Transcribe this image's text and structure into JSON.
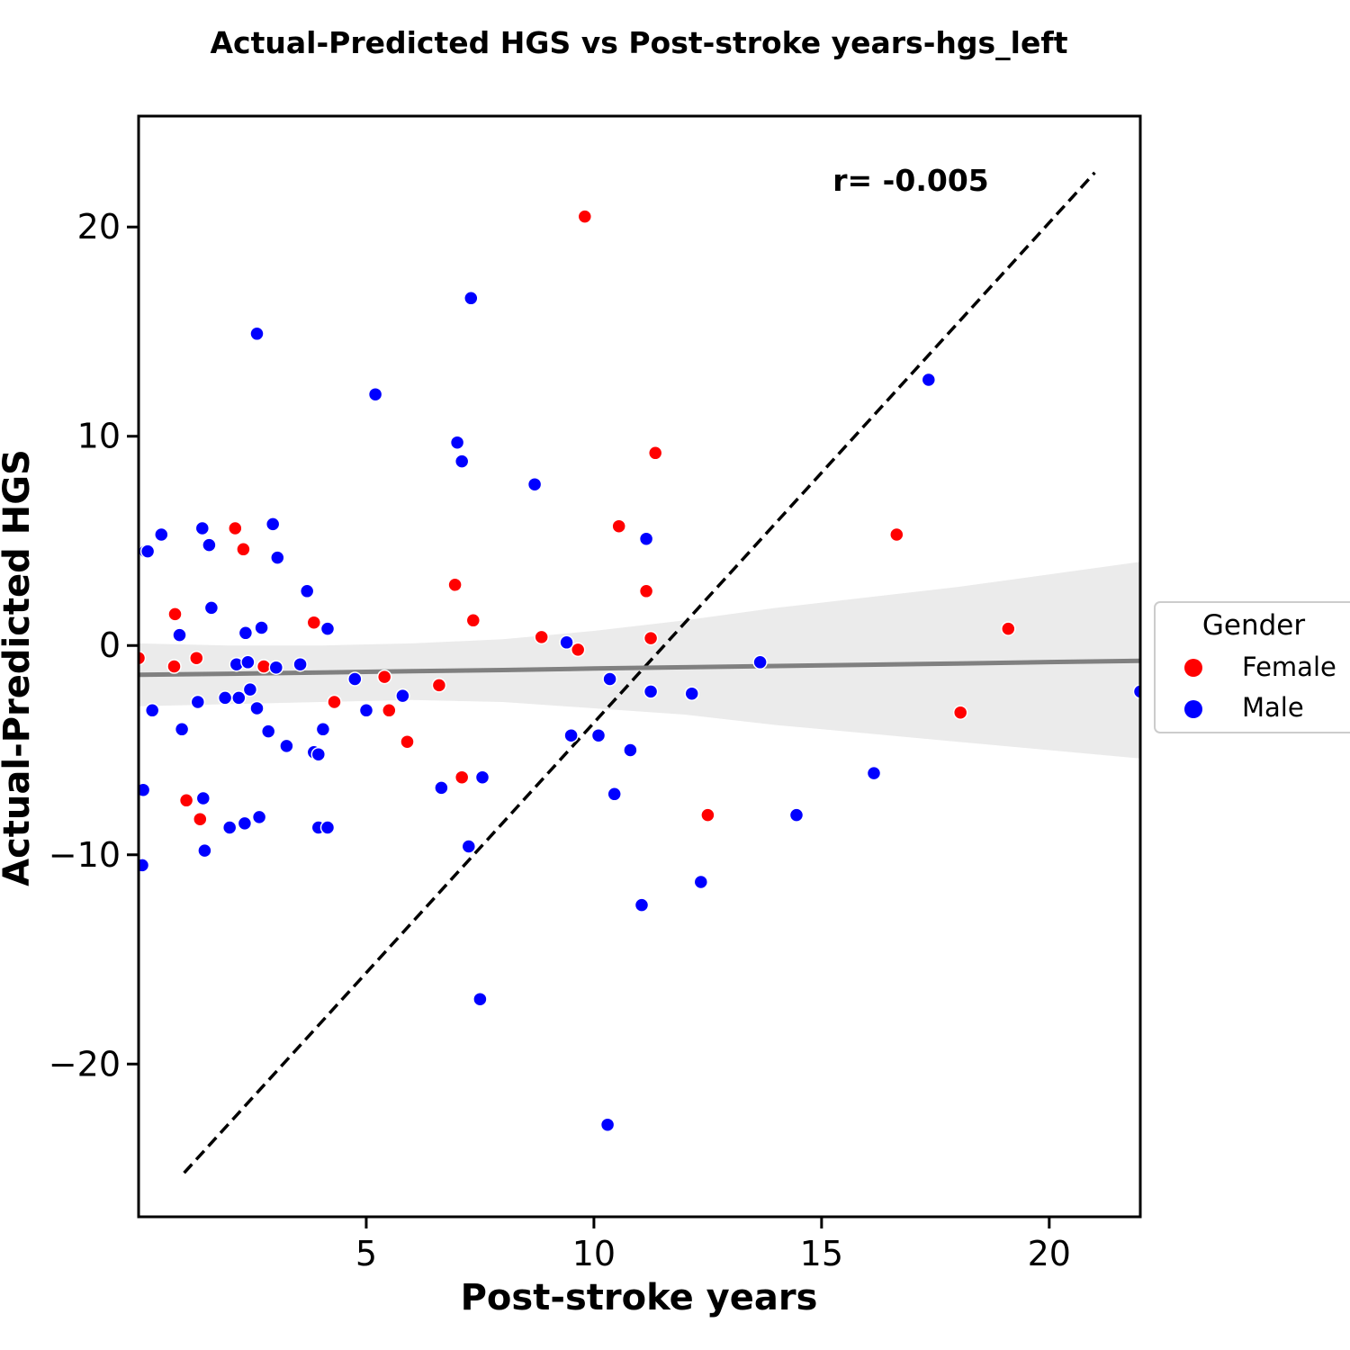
{
  "chart_data": {
    "type": "scatter",
    "title": "Actual-Predicted HGS vs Post-stroke years-hgs_left",
    "xlabel": "Post-stroke years",
    "ylabel": "Actual-Predicted HGS",
    "xlim": [
      0,
      22
    ],
    "ylim": [
      -27.3,
      25.3
    ],
    "xticks": [
      5,
      10,
      15,
      20
    ],
    "yticks": [
      20,
      10,
      0,
      -10,
      -20
    ],
    "grid": false,
    "legend": {
      "title": "Gender",
      "placement": "right-outside"
    },
    "annotation": "r= -0.005",
    "identity_line": {
      "from": [
        1.0,
        -25.2
      ],
      "to": [
        21.0,
        22.6
      ],
      "style": "dashed",
      "color": "#000000"
    },
    "regression": {
      "color": "#808080",
      "band_color": "#ebebeb",
      "x": [
        0,
        2,
        4,
        6,
        8,
        10,
        12,
        14,
        16,
        18,
        20,
        22
      ],
      "y": [
        -1.4,
        -1.35,
        -1.29,
        -1.23,
        -1.17,
        -1.1,
        -1.04,
        -0.98,
        -0.92,
        -0.86,
        -0.79,
        -0.73
      ],
      "upper": [
        0.1,
        0.0,
        0.0,
        0.1,
        0.3,
        0.7,
        1.2,
        1.8,
        2.3,
        2.8,
        3.4,
        4.0
      ],
      "lower": [
        -2.9,
        -2.8,
        -2.7,
        -2.6,
        -2.7,
        -3.0,
        -3.3,
        -3.8,
        -4.2,
        -4.6,
        -5.0,
        -5.4
      ]
    },
    "series": [
      {
        "name": "Female",
        "color": "#ff0000",
        "points": [
          [
            0.0,
            -0.6
          ],
          [
            0.8,
            1.5
          ],
          [
            0.78,
            -1.0
          ],
          [
            1.05,
            -7.4
          ],
          [
            1.27,
            -0.6
          ],
          [
            1.35,
            -8.3
          ],
          [
            2.12,
            5.6
          ],
          [
            2.3,
            4.6
          ],
          [
            2.75,
            -1.0
          ],
          [
            3.85,
            1.1
          ],
          [
            4.3,
            -2.7
          ],
          [
            5.4,
            -1.5
          ],
          [
            5.5,
            -3.1
          ],
          [
            5.9,
            -4.6
          ],
          [
            6.6,
            -1.9
          ],
          [
            6.95,
            2.9
          ],
          [
            7.1,
            -6.3
          ],
          [
            7.35,
            1.2
          ],
          [
            8.85,
            0.4
          ],
          [
            9.65,
            -0.2
          ],
          [
            9.8,
            20.5
          ],
          [
            10.55,
            5.7
          ],
          [
            11.15,
            2.6
          ],
          [
            11.25,
            0.35
          ],
          [
            11.35,
            9.2
          ],
          [
            12.5,
            -8.1
          ],
          [
            16.65,
            5.3
          ],
          [
            18.05,
            -3.2
          ],
          [
            19.1,
            0.8
          ]
        ]
      },
      {
        "name": "Male",
        "color": "#0000ff",
        "points": [
          [
            0.1,
            -6.9
          ],
          [
            0.08,
            -10.5
          ],
          [
            0.15,
            4.5
          ],
          [
            0.2,
            4.5
          ],
          [
            0.3,
            -3.1
          ],
          [
            0.5,
            5.3
          ],
          [
            0.9,
            0.5
          ],
          [
            0.95,
            -4.0
          ],
          [
            1.3,
            -2.7
          ],
          [
            1.4,
            5.6
          ],
          [
            1.42,
            -7.3
          ],
          [
            1.45,
            -9.8
          ],
          [
            1.55,
            4.8
          ],
          [
            1.6,
            1.8
          ],
          [
            1.9,
            -2.5
          ],
          [
            2.0,
            -8.7
          ],
          [
            2.15,
            -0.9
          ],
          [
            2.2,
            -2.5
          ],
          [
            2.33,
            -8.5
          ],
          [
            2.35,
            0.6
          ],
          [
            2.4,
            -0.8
          ],
          [
            2.45,
            -2.1
          ],
          [
            2.6,
            14.9
          ],
          [
            2.6,
            -3.0
          ],
          [
            2.65,
            -8.2
          ],
          [
            2.7,
            0.85
          ],
          [
            2.85,
            -4.1
          ],
          [
            2.95,
            5.8
          ],
          [
            3.02,
            -1.05
          ],
          [
            3.05,
            4.2
          ],
          [
            3.25,
            -4.8
          ],
          [
            3.55,
            -0.9
          ],
          [
            3.7,
            2.6
          ],
          [
            3.85,
            -5.1
          ],
          [
            3.95,
            -5.2
          ],
          [
            3.95,
            -8.7
          ],
          [
            4.05,
            -4.0
          ],
          [
            4.15,
            -8.7
          ],
          [
            4.15,
            0.8
          ],
          [
            4.75,
            -1.6
          ],
          [
            5.0,
            -3.1
          ],
          [
            5.2,
            12.0
          ],
          [
            5.8,
            -2.4
          ],
          [
            6.65,
            -6.8
          ],
          [
            7.0,
            9.7
          ],
          [
            7.1,
            8.8
          ],
          [
            7.25,
            -9.6
          ],
          [
            7.3,
            16.6
          ],
          [
            7.5,
            -16.9
          ],
          [
            7.55,
            -6.3
          ],
          [
            8.7,
            7.7
          ],
          [
            9.4,
            0.15
          ],
          [
            9.5,
            -4.3
          ],
          [
            10.1,
            -4.3
          ],
          [
            10.3,
            -22.9
          ],
          [
            10.35,
            -1.6
          ],
          [
            10.45,
            -7.1
          ],
          [
            10.8,
            -5.0
          ],
          [
            11.05,
            -12.4
          ],
          [
            11.15,
            5.1
          ],
          [
            11.25,
            -2.2
          ],
          [
            12.15,
            -2.3
          ],
          [
            12.35,
            -11.3
          ],
          [
            13.65,
            -0.8
          ],
          [
            14.45,
            -8.1
          ],
          [
            16.15,
            -6.1
          ],
          [
            17.35,
            12.7
          ],
          [
            22.0,
            -2.2
          ]
        ]
      }
    ]
  }
}
